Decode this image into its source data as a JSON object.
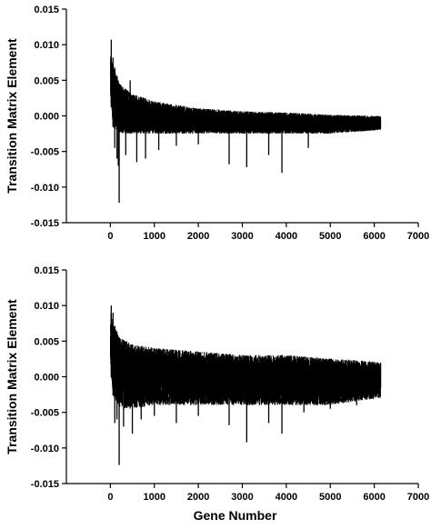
{
  "chart_data": [
    {
      "type": "line",
      "panel": "top",
      "title": "",
      "xlabel": "",
      "ylabel": "Transition Matrix Element",
      "xlim": [
        -1000,
        7000
      ],
      "ylim": [
        -0.015,
        0.015
      ],
      "grid": false,
      "legend": "none",
      "x_ticks": [
        0,
        1000,
        2000,
        3000,
        4000,
        5000,
        6000,
        7000
      ],
      "x_tick_labels": [
        "0",
        "1000",
        "2000",
        "3000",
        "4000",
        "5000",
        "6000",
        "7000"
      ],
      "y_ticks": [
        -0.015,
        -0.01,
        -0.005,
        0,
        0.005,
        0.01,
        0.015
      ],
      "y_tick_labels": [
        "-0.015",
        "-0.010",
        "-0.005",
        "0.000",
        "0.005",
        "0.010",
        "0.015"
      ],
      "color": "#000000",
      "series": [
        {
          "description": "one vertical line per gene; envelope approximated",
          "n_genes": 6150,
          "envelope_upper": [
            [
              0,
              0.0085
            ],
            [
              50,
              0.0079
            ],
            [
              200,
              0.0045
            ],
            [
              500,
              0.003
            ],
            [
              1000,
              0.002
            ],
            [
              2000,
              0.001
            ],
            [
              3000,
              0.0006
            ],
            [
              4000,
              0.0004
            ],
            [
              5000,
              0.0001
            ],
            [
              6150,
              -0.0001
            ]
          ],
          "envelope_lower": [
            [
              0,
              0.003
            ],
            [
              50,
              -0.0015
            ],
            [
              200,
              -0.0025
            ],
            [
              500,
              -0.0025
            ],
            [
              1000,
              -0.0025
            ],
            [
              2000,
              -0.0025
            ],
            [
              3000,
              -0.0025
            ],
            [
              4000,
              -0.0025
            ],
            [
              5000,
              -0.0025
            ],
            [
              6150,
              -0.002
            ]
          ],
          "spikes": [
            [
              20,
              0.0107
            ],
            [
              60,
              0.0082
            ],
            [
              100,
              -0.0045
            ],
            [
              150,
              -0.006
            ],
            [
              180,
              -0.007
            ],
            [
              200,
              -0.0122
            ],
            [
              350,
              -0.0055
            ],
            [
              450,
              0.005
            ],
            [
              600,
              -0.0065
            ],
            [
              800,
              -0.006
            ],
            [
              1100,
              -0.0048
            ],
            [
              1500,
              -0.0042
            ],
            [
              2000,
              -0.004
            ],
            [
              2700,
              -0.0068
            ],
            [
              3100,
              -0.0072
            ],
            [
              3600,
              -0.0055
            ],
            [
              3900,
              -0.008
            ],
            [
              4500,
              -0.0045
            ]
          ]
        }
      ]
    },
    {
      "type": "line",
      "panel": "bottom",
      "title": "",
      "xlabel": "Gene Number",
      "ylabel": "Transition Matrix Element",
      "xlim": [
        -1000,
        7000
      ],
      "ylim": [
        -0.015,
        0.015
      ],
      "grid": false,
      "legend": "none",
      "x_ticks": [
        0,
        1000,
        2000,
        3000,
        4000,
        5000,
        6000,
        7000
      ],
      "x_tick_labels": [
        "0",
        "1000",
        "2000",
        "3000",
        "4000",
        "5000",
        "6000",
        "7000"
      ],
      "y_ticks": [
        -0.015,
        -0.01,
        -0.005,
        0,
        0.005,
        0.01,
        0.015
      ],
      "y_tick_labels": [
        "-0.015",
        "-0.010",
        "-0.005",
        "0.000",
        "0.005",
        "0.010",
        "0.015"
      ],
      "color": "#000000",
      "series": [
        {
          "description": "one vertical line per gene; envelope approximated",
          "n_genes": 6150,
          "envelope_upper": [
            [
              0,
              0.009
            ],
            [
              50,
              0.008
            ],
            [
              200,
              0.0055
            ],
            [
              500,
              0.0045
            ],
            [
              1000,
              0.004
            ],
            [
              2000,
              0.0035
            ],
            [
              3000,
              0.003
            ],
            [
              4000,
              0.003
            ],
            [
              5000,
              0.0025
            ],
            [
              6150,
              0.002
            ]
          ],
          "envelope_lower": [
            [
              0,
              0.0015
            ],
            [
              50,
              -0.0025
            ],
            [
              200,
              -0.0045
            ],
            [
              500,
              -0.0045
            ],
            [
              1000,
              -0.004
            ],
            [
              2000,
              -0.004
            ],
            [
              3000,
              -0.004
            ],
            [
              4000,
              -0.004
            ],
            [
              5000,
              -0.004
            ],
            [
              6150,
              -0.003
            ]
          ],
          "spikes": [
            [
              20,
              0.01
            ],
            [
              60,
              0.009
            ],
            [
              100,
              -0.0065
            ],
            [
              150,
              -0.006
            ],
            [
              200,
              -0.0124
            ],
            [
              300,
              -0.007
            ],
            [
              500,
              -0.008
            ],
            [
              700,
              -0.006
            ],
            [
              1000,
              -0.0055
            ],
            [
              1500,
              -0.0065
            ],
            [
              2000,
              -0.0055
            ],
            [
              2700,
              -0.0068
            ],
            [
              3100,
              -0.0092
            ],
            [
              3600,
              -0.0065
            ],
            [
              3900,
              -0.008
            ],
            [
              4400,
              -0.005
            ],
            [
              5000,
              -0.0045
            ],
            [
              5600,
              -0.004
            ]
          ]
        }
      ]
    }
  ]
}
